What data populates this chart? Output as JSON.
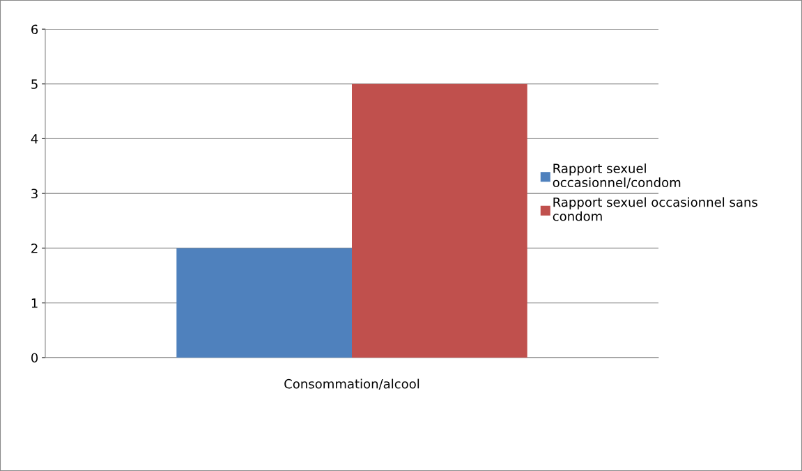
{
  "chart_data": {
    "type": "bar",
    "categories": [
      "Consommation/alcool"
    ],
    "series": [
      {
        "name": "Rapport sexuel\noccasionnel/condom",
        "color": "#4f81bd",
        "values": [
          2
        ]
      },
      {
        "name": "Rapport sexuel occasionnel sans\ncondom",
        "color": "#c0504d",
        "values": [
          5
        ]
      }
    ],
    "ylim": [
      0,
      6
    ],
    "yticks": [
      0,
      1,
      2,
      3,
      4,
      5,
      6
    ],
    "grid": "y",
    "legend": "right"
  }
}
